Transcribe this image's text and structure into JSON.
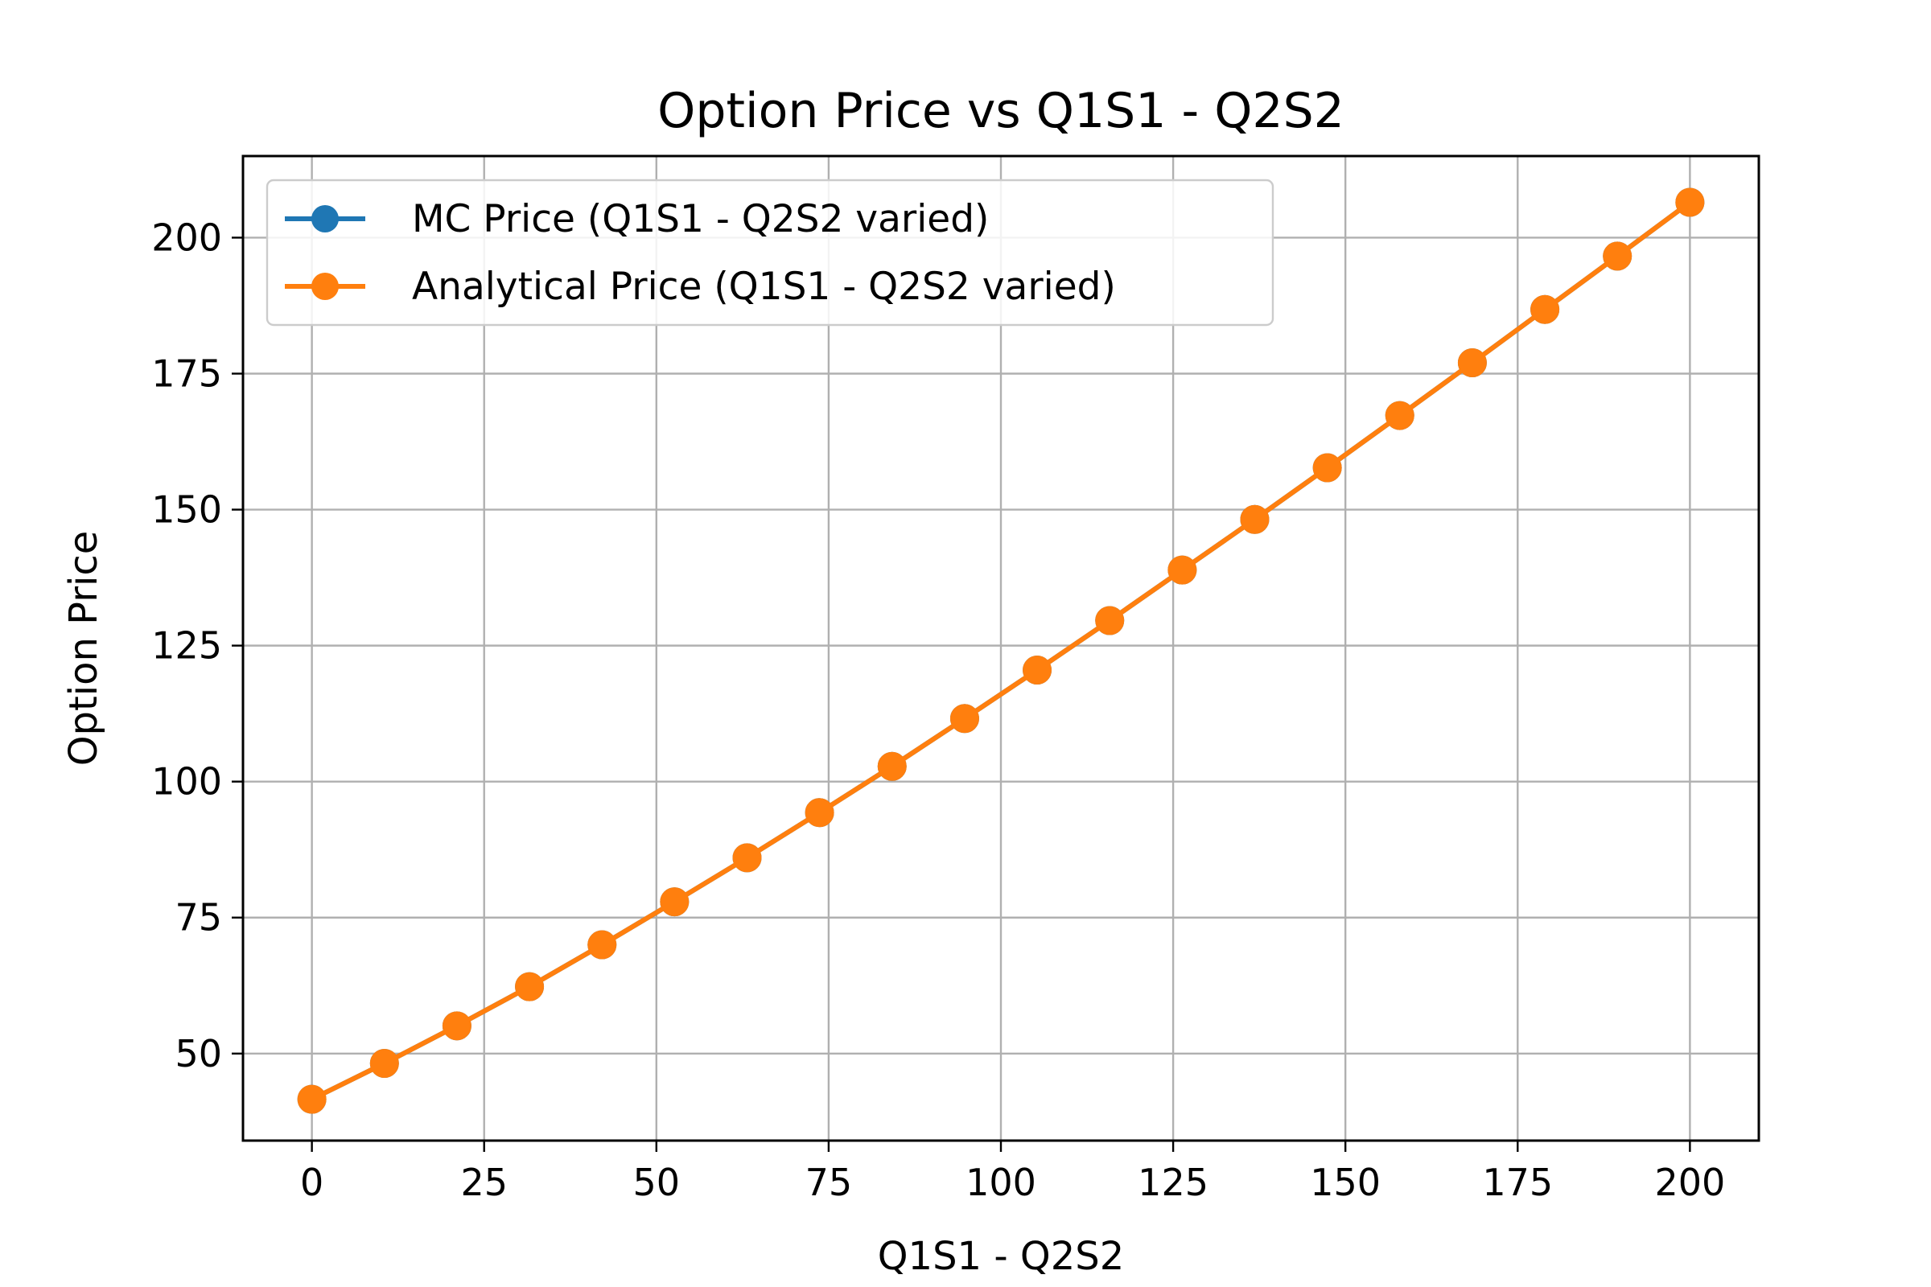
{
  "chart_data": {
    "type": "line",
    "title": "Option Price vs Q1S1 - Q2S2",
    "xlabel": "Q1S1 - Q2S2",
    "ylabel": "Option Price",
    "xlim": [
      -10,
      210
    ],
    "ylim": [
      34,
      215
    ],
    "xticks": [
      0,
      25,
      50,
      75,
      100,
      125,
      150,
      175,
      200
    ],
    "yticks": [
      50,
      75,
      100,
      125,
      150,
      175,
      200
    ],
    "grid": true,
    "legend_position": "top-left",
    "x": [
      0,
      10.53,
      21.05,
      31.58,
      42.11,
      52.63,
      63.16,
      73.68,
      84.21,
      94.74,
      105.26,
      115.79,
      126.32,
      136.84,
      147.37,
      157.89,
      168.42,
      178.95,
      189.47,
      200
    ],
    "series": [
      {
        "name": "MC Price (Q1S1 - Q2S2 varied)",
        "color": "#1f77b4",
        "values": [
          41.6,
          48.2,
          55.1,
          62.3,
          70.0,
          77.9,
          86.0,
          94.3,
          102.8,
          111.6,
          120.5,
          129.6,
          138.9,
          148.2,
          157.7,
          167.3,
          177.0,
          186.8,
          196.6,
          206.5
        ]
      },
      {
        "name": "Analytical Price (Q1S1 - Q2S2 varied)",
        "color": "#ff7f0e",
        "values": [
          41.6,
          48.2,
          55.1,
          62.3,
          70.0,
          77.9,
          86.0,
          94.3,
          102.8,
          111.6,
          120.5,
          129.6,
          138.9,
          148.2,
          157.7,
          167.3,
          177.0,
          186.8,
          196.6,
          206.5
        ]
      }
    ]
  }
}
